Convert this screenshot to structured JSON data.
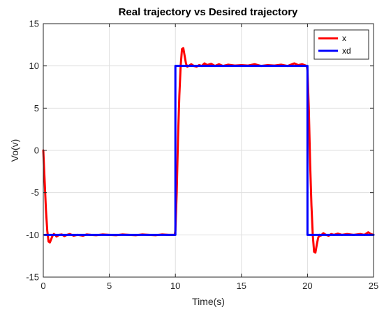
{
  "chart_data": {
    "type": "line",
    "title": "Real trajectory  vs Desired trajectory",
    "xlabel": "Time(s)",
    "ylabel": "Vo(v)",
    "xlim": [
      0,
      25
    ],
    "ylim": [
      -15,
      15
    ],
    "xticks": [
      0,
      5,
      10,
      15,
      20,
      25
    ],
    "yticks": [
      -15,
      -10,
      -5,
      0,
      5,
      10,
      15
    ],
    "grid": true,
    "legend_position": "top-right",
    "series": [
      {
        "name": "x",
        "color": "#ff0000",
        "x": [
          0,
          0.1,
          0.2,
          0.3,
          0.4,
          0.5,
          0.6,
          0.7,
          0.8,
          0.9,
          1.0,
          1.2,
          1.4,
          1.6,
          1.8,
          2.0,
          2.3,
          2.6,
          3.0,
          3.3,
          3.6,
          4.0,
          4.5,
          5.0,
          5.5,
          6.0,
          6.5,
          7.0,
          7.5,
          8.0,
          8.5,
          9.0,
          9.5,
          9.95,
          10.0,
          10.1,
          10.2,
          10.3,
          10.4,
          10.5,
          10.6,
          10.7,
          10.8,
          10.9,
          11.0,
          11.2,
          11.4,
          11.6,
          11.8,
          12.0,
          12.2,
          12.4,
          12.7,
          13.0,
          13.3,
          13.6,
          14.0,
          14.5,
          15.0,
          15.5,
          16.0,
          16.5,
          17.0,
          17.5,
          18.0,
          18.5,
          19.0,
          19.3,
          19.6,
          19.95,
          20.0,
          20.1,
          20.2,
          20.3,
          20.4,
          20.5,
          20.6,
          20.7,
          20.8,
          20.9,
          21.0,
          21.2,
          21.4,
          21.6,
          21.8,
          22.0,
          22.3,
          22.6,
          23.0,
          23.5,
          24.0,
          24.3,
          24.6,
          24.8,
          25.0
        ],
        "y": [
          0,
          -3.5,
          -7.0,
          -9.5,
          -10.8,
          -10.9,
          -10.5,
          -10.1,
          -9.9,
          -10.0,
          -10.2,
          -10.0,
          -9.95,
          -10.15,
          -10.0,
          -9.9,
          -10.1,
          -10.0,
          -10.1,
          -9.95,
          -10.0,
          -10.05,
          -9.95,
          -10.0,
          -10.05,
          -9.95,
          -10.0,
          -10.05,
          -9.95,
          -10.0,
          -10.05,
          -9.95,
          -10.0,
          -10.0,
          -9.5,
          -5.0,
          1.5,
          6.5,
          10.0,
          12.0,
          12.1,
          11.2,
          10.3,
          9.9,
          10.0,
          10.2,
          10.0,
          9.9,
          10.1,
          10.0,
          10.3,
          10.1,
          10.25,
          10.0,
          10.2,
          10.0,
          10.15,
          10.05,
          10.1,
          10.05,
          10.2,
          10.0,
          10.1,
          10.05,
          10.15,
          10.0,
          10.3,
          10.1,
          10.2,
          10.0,
          9.5,
          5.0,
          -1.5,
          -6.5,
          -10.0,
          -12.0,
          -12.1,
          -11.2,
          -10.4,
          -10.0,
          -10.1,
          -9.8,
          -10.0,
          -10.1,
          -9.9,
          -10.0,
          -9.85,
          -10.0,
          -9.9,
          -10.0,
          -9.9,
          -10.0,
          -9.7,
          -9.9,
          -10.0
        ]
      },
      {
        "name": "xd",
        "color": "#0000ff",
        "x": [
          0.1,
          10,
          10,
          20,
          20,
          25
        ],
        "y": [
          -10,
          -10,
          10,
          10,
          -10,
          -10
        ]
      }
    ]
  }
}
